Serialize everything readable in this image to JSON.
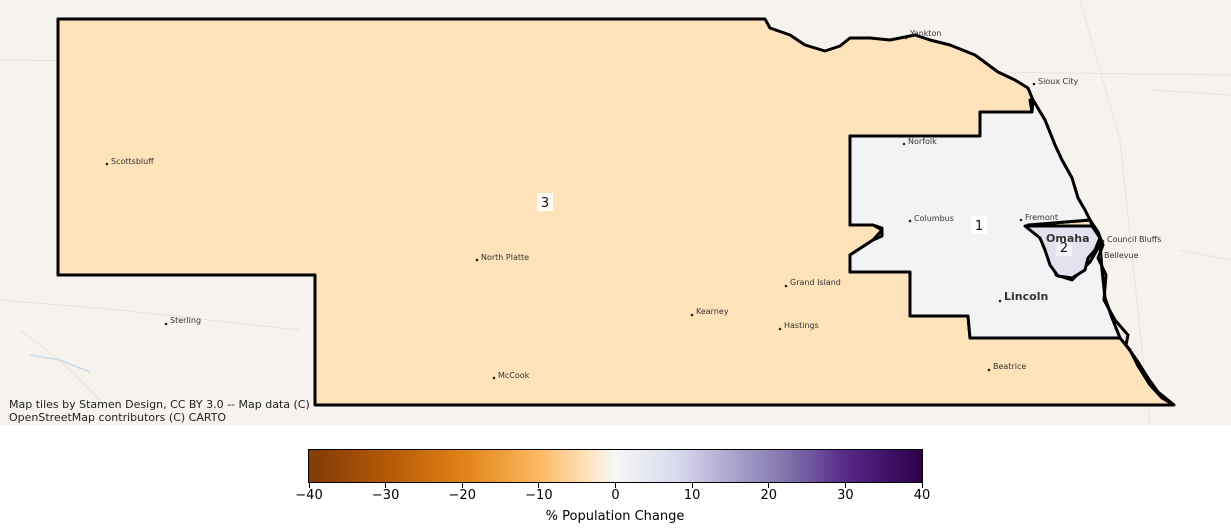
{
  "map": {
    "basemap_attribution": "Map tiles by Stamen Design, CC BY 3.0 -- Map data (C)\nOpenStreetMap contributors (C) CARTO",
    "districts": [
      {
        "id": "1",
        "label": "1",
        "fill": "#f3f3f6"
      },
      {
        "id": "2",
        "label": "2",
        "fill": "#e3e1ee"
      },
      {
        "id": "3",
        "label": "3",
        "fill": "#fee2ba"
      }
    ],
    "cities": [
      {
        "name": "Yankton",
        "size": "small"
      },
      {
        "name": "Sioux City",
        "size": "small"
      },
      {
        "name": "Norfolk",
        "size": "small"
      },
      {
        "name": "Scottsbluff",
        "size": "small"
      },
      {
        "name": "Columbus",
        "size": "small"
      },
      {
        "name": "Fremont",
        "size": "small"
      },
      {
        "name": "Omaha",
        "size": "big"
      },
      {
        "name": "Council Bluffs",
        "size": "small"
      },
      {
        "name": "Bellevue",
        "size": "small"
      },
      {
        "name": "North Platte",
        "size": "small"
      },
      {
        "name": "Grand Island",
        "size": "small"
      },
      {
        "name": "Lincoln",
        "size": "big"
      },
      {
        "name": "Kearney",
        "size": "small"
      },
      {
        "name": "Hastings",
        "size": "small"
      },
      {
        "name": "Sterling",
        "size": "small"
      },
      {
        "name": "McCook",
        "size": "small"
      },
      {
        "name": "Beatrice",
        "size": "small"
      }
    ]
  },
  "colorbar": {
    "label": "% Population Change",
    "min": -40,
    "max": 40,
    "ticks": [
      -40,
      -30,
      -20,
      -10,
      0,
      10,
      20,
      30,
      40
    ],
    "tick_labels": [
      "−40",
      "−30",
      "−20",
      "−10",
      "0",
      "10",
      "20",
      "30",
      "40"
    ],
    "colormap": "PuOr"
  }
}
